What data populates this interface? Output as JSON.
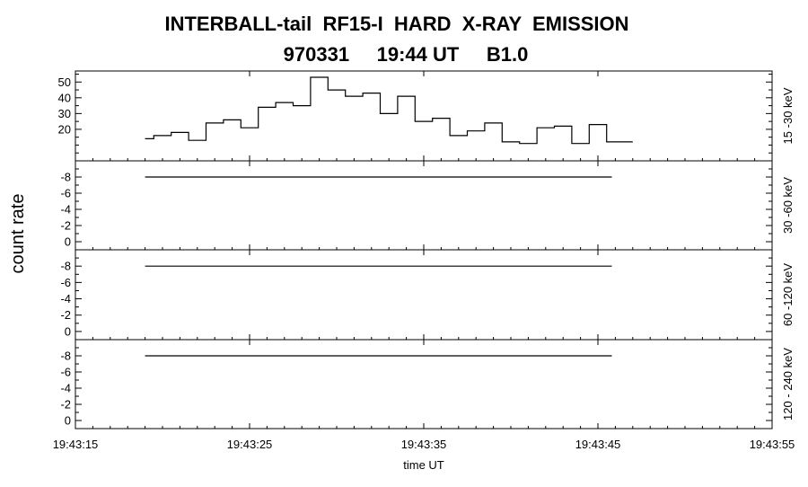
{
  "title_line1": "INTERBALL-tail  RF15-I  HARD  X-RAY  EMISSION",
  "title_line2": "970331     19:44 UT     B1.0",
  "chart_data": {
    "type": "line",
    "ylabel": "count rate",
    "xlabel": "time UT",
    "x_tick_labels": [
      "19:43:15",
      "19:43:25",
      "19:43:35",
      "19:43:45",
      "19:43:55"
    ],
    "x_ticks_seconds": [
      0,
      10,
      20,
      30,
      40
    ],
    "xlim_seconds": [
      0,
      40
    ],
    "panels": [
      {
        "name": "15 -30 keV",
        "ylim": [
          0,
          57
        ],
        "yticks": [
          20,
          30,
          40,
          50
        ],
        "ytick_labels": [
          "20",
          "30",
          "40",
          "50"
        ],
        "step": true,
        "x": [
          4.0,
          4.5,
          5.5,
          6.5,
          7.5,
          8.5,
          9.5,
          10.5,
          11.5,
          12.5,
          13.5,
          14.5,
          15.5,
          16.5,
          17.5,
          18.5,
          19.5,
          20.5,
          21.5,
          22.5,
          23.5,
          24.5,
          25.5,
          26.5,
          27.5,
          28.5,
          29.5,
          30.5,
          31.5
        ],
        "values": [
          14,
          16,
          18,
          13,
          24,
          26,
          21,
          34,
          37,
          35,
          53,
          45,
          41,
          43,
          30,
          41,
          25,
          27,
          16,
          19,
          24,
          12,
          11,
          21,
          22,
          11,
          23,
          12,
          12
        ]
      },
      {
        "name": "30 -60 keV",
        "ylim": [
          1,
          -10
        ],
        "yticks": [
          0,
          -2,
          -4,
          -6,
          -8
        ],
        "ytick_labels": [
          "0",
          "-2",
          "-4",
          "-6",
          "-8"
        ],
        "step": false,
        "x": [
          4.0,
          30.8
        ],
        "values": [
          -8,
          -8
        ]
      },
      {
        "name": "60 -120 keV",
        "ylim": [
          1,
          -10
        ],
        "yticks": [
          0,
          -2,
          -4,
          -6,
          -8
        ],
        "ytick_labels": [
          "0",
          "-2",
          "-4",
          "-6",
          "-8"
        ],
        "step": false,
        "x": [
          4.0,
          30.8
        ],
        "values": [
          -8,
          -8
        ]
      },
      {
        "name": "120 - 240 keV",
        "ylim": [
          1,
          -10
        ],
        "yticks": [
          0,
          -2,
          -4,
          -6,
          -8
        ],
        "ytick_labels": [
          "0",
          "-2",
          "-4",
          "-6",
          "-8"
        ],
        "step": false,
        "x": [
          4.0,
          30.8
        ],
        "values": [
          -8,
          -8
        ]
      }
    ]
  }
}
